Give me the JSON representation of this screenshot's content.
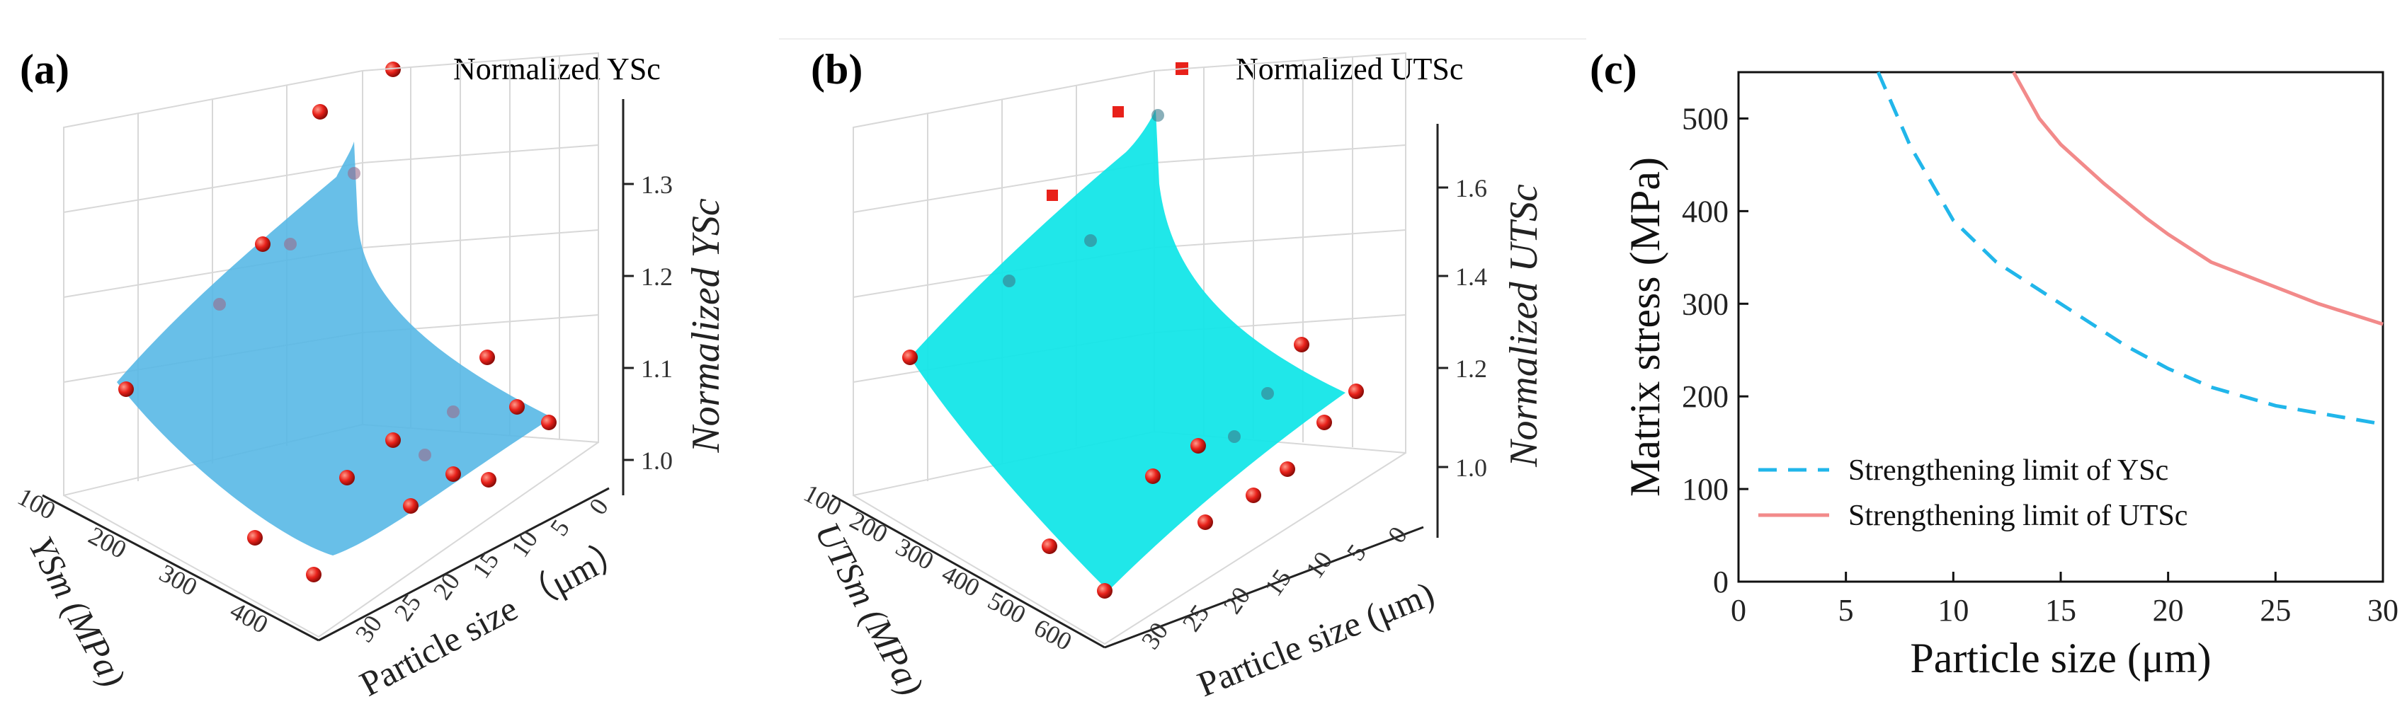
{
  "panels": {
    "a": {
      "label": "(a)",
      "legend": "Normalized YSc",
      "zlabel": "Normalized YSc",
      "xlabel": "YSm (MPa)",
      "ylabel": "Particle size （μm）",
      "zticks": [
        "1.0",
        "1.1",
        "1.2",
        "1.3"
      ],
      "xticks": [
        "100",
        "200",
        "300",
        "400"
      ],
      "yticks": [
        "30",
        "25",
        "20",
        "15",
        "10",
        "5",
        "0"
      ]
    },
    "b": {
      "label": "(b)",
      "legend": "Normalized UTSc",
      "zlabel": "Normalized UTSc",
      "xlabel": "UTSm (MPa)",
      "ylabel": "Particle size (μm)",
      "zticks": [
        "1.0",
        "1.2",
        "1.4",
        "1.6"
      ],
      "xticks": [
        "100",
        "200",
        "300",
        "400",
        "500",
        "600"
      ],
      "yticks": [
        "30",
        "25",
        "20",
        "15",
        "10",
        "5",
        "0"
      ]
    },
    "c": {
      "label": "(c)"
    }
  },
  "chart_data": [
    {
      "type": "scatter",
      "title": "(a)",
      "subtype": "3d-surface-scatter",
      "xlabel": "YSm (MPa)",
      "ylabel": "Particle size （μm）",
      "zlabel": "Normalized YSc",
      "xlim": [
        100,
        450
      ],
      "ylim": [
        0,
        30
      ],
      "zlim": [
        0.95,
        1.35
      ],
      "series": [
        {
          "name": "Normalized YSc",
          "color": "#e8211a"
        }
      ],
      "surface_color": "#58b8e6"
    },
    {
      "type": "scatter",
      "title": "(b)",
      "subtype": "3d-surface-scatter",
      "xlabel": "UTSm (MPa)",
      "ylabel": "Particle size (μm)",
      "zlabel": "Normalized UTSc",
      "xlim": [
        100,
        600
      ],
      "ylim": [
        0,
        30
      ],
      "zlim": [
        0.9,
        1.7
      ],
      "series": [
        {
          "name": "Normalized UTSc",
          "color": "#e8211a"
        }
      ],
      "surface_color": "#14e6e8"
    },
    {
      "type": "line",
      "title": "(c)",
      "xlabel": "Particle size (μm)",
      "ylabel": "Matrix stress (MPa)",
      "xlim": [
        0,
        30
      ],
      "ylim": [
        0,
        550
      ],
      "xticks": [
        0,
        5,
        10,
        15,
        20,
        25,
        30
      ],
      "yticks": [
        0,
        100,
        200,
        300,
        400,
        500
      ],
      "legend_position": "bottom-left",
      "series": [
        {
          "name": "Strengthening limit of YSc",
          "color": "#21b6ea",
          "dash": true,
          "x": [
            6.5,
            8,
            10,
            12,
            15,
            18,
            20,
            22,
            25,
            28,
            30
          ],
          "y": [
            550,
            470,
            390,
            345,
            300,
            255,
            230,
            210,
            190,
            178,
            170
          ]
        },
        {
          "name": "Strengthening limit of UTSc",
          "color": "#f28a8a",
          "dash": false,
          "x": [
            12.8,
            14,
            15,
            17,
            19,
            20,
            22,
            25,
            27,
            30
          ],
          "y": [
            550,
            500,
            472,
            430,
            392,
            375,
            345,
            318,
            300,
            278
          ]
        }
      ]
    }
  ]
}
